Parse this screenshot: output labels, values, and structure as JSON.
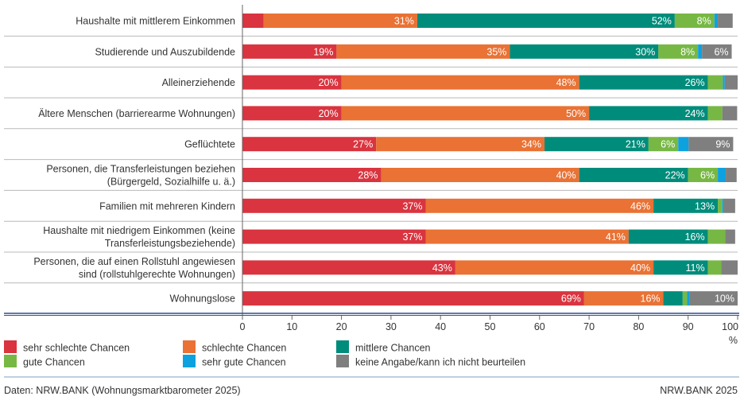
{
  "chart_data": {
    "type": "bar",
    "orientation": "horizontal",
    "stacked": true,
    "categories": [
      [
        "Haushalte mit mittlerem Einkommen"
      ],
      [
        "Studierende und Auszubildende"
      ],
      [
        "Alleinerziehende"
      ],
      [
        "Ältere Menschen (barrierearme Wohnungen)"
      ],
      [
        "Geflüchtete"
      ],
      [
        "Personen, die Transferleistungen beziehen",
        "(Bürgergeld, Sozialhilfe u. ä.)"
      ],
      [
        "Familien mit mehreren Kindern"
      ],
      [
        "Haushalte mit niedrigem Einkommen (keine",
        "Transferleistungsbeziehende)"
      ],
      [
        "Personen, die auf einen Rollstuhl angewiesen",
        "sind (rollstuhlgerechte Wohnungen)"
      ],
      [
        "Wohnungslose"
      ]
    ],
    "series": [
      {
        "name": "sehr schlechte Chancen",
        "color": "#d9343f",
        "values": [
          4.3,
          19,
          20,
          20,
          27,
          28,
          37,
          37,
          43,
          69
        ],
        "labels": [
          "",
          "19%",
          "20%",
          "20%",
          "27%",
          "28%",
          "37%",
          "37%",
          "43%",
          "69%"
        ]
      },
      {
        "name": "schlechte Chancen",
        "color": "#e97234",
        "values": [
          31,
          35,
          48,
          50,
          34,
          40,
          46,
          41,
          40,
          16
        ],
        "labels": [
          "31%",
          "35%",
          "48%",
          "50%",
          "34%",
          "40%",
          "46%",
          "41%",
          "40%",
          "16%"
        ]
      },
      {
        "name": "mittlere Chancen",
        "color": "#008c7b",
        "values": [
          52,
          30,
          26,
          24,
          21,
          22,
          13,
          16,
          11,
          3.9
        ],
        "labels": [
          "52%",
          "30%",
          "26%",
          "24%",
          "21%",
          "22%",
          "13%",
          "16%",
          "11%",
          ""
        ]
      },
      {
        "name": "gute Chancen",
        "color": "#77b844",
        "values": [
          8,
          8,
          3,
          2.9,
          6,
          6,
          0.9,
          3.5,
          2.7,
          0.9
        ],
        "labels": [
          "8%",
          "8%",
          "",
          "",
          "6%",
          "6%",
          "",
          "",
          "",
          ""
        ]
      },
      {
        "name": "sehr gute Chancen",
        "color": "#0ea1e0",
        "values": [
          0.7,
          0.8,
          0.4,
          0,
          2.1,
          1.6,
          0.3,
          0,
          0,
          0.5
        ],
        "labels": [
          "",
          "",
          "",
          "",
          "",
          "",
          "",
          "",
          "",
          ""
        ]
      },
      {
        "name": "keine Angabe/kann ich nicht beurteilen",
        "color": "#7f7f7f",
        "values": [
          3,
          6,
          3,
          3,
          9,
          2.2,
          2.3,
          2,
          3.6,
          10
        ],
        "labels": [
          "",
          "6%",
          "",
          "",
          "9%",
          "",
          "",
          "",
          "",
          "10%"
        ]
      }
    ],
    "xlim": [
      0,
      100
    ],
    "xticks": [
      "0",
      "10",
      "20",
      "30",
      "40",
      "50",
      "60",
      "70",
      "80",
      "90",
      "100"
    ],
    "xlabel": "%",
    "legend_position": "bottom",
    "grid": false
  },
  "footer": {
    "source": "Daten: NRW.BANK (Wohnungsmarktbarometer 2025)",
    "copyright": "NRW.BANK 2025"
  },
  "colors": {
    "axis": "#2e4f8f",
    "separator": "#b9b9b9",
    "footer_line": "#a9bfd9"
  }
}
